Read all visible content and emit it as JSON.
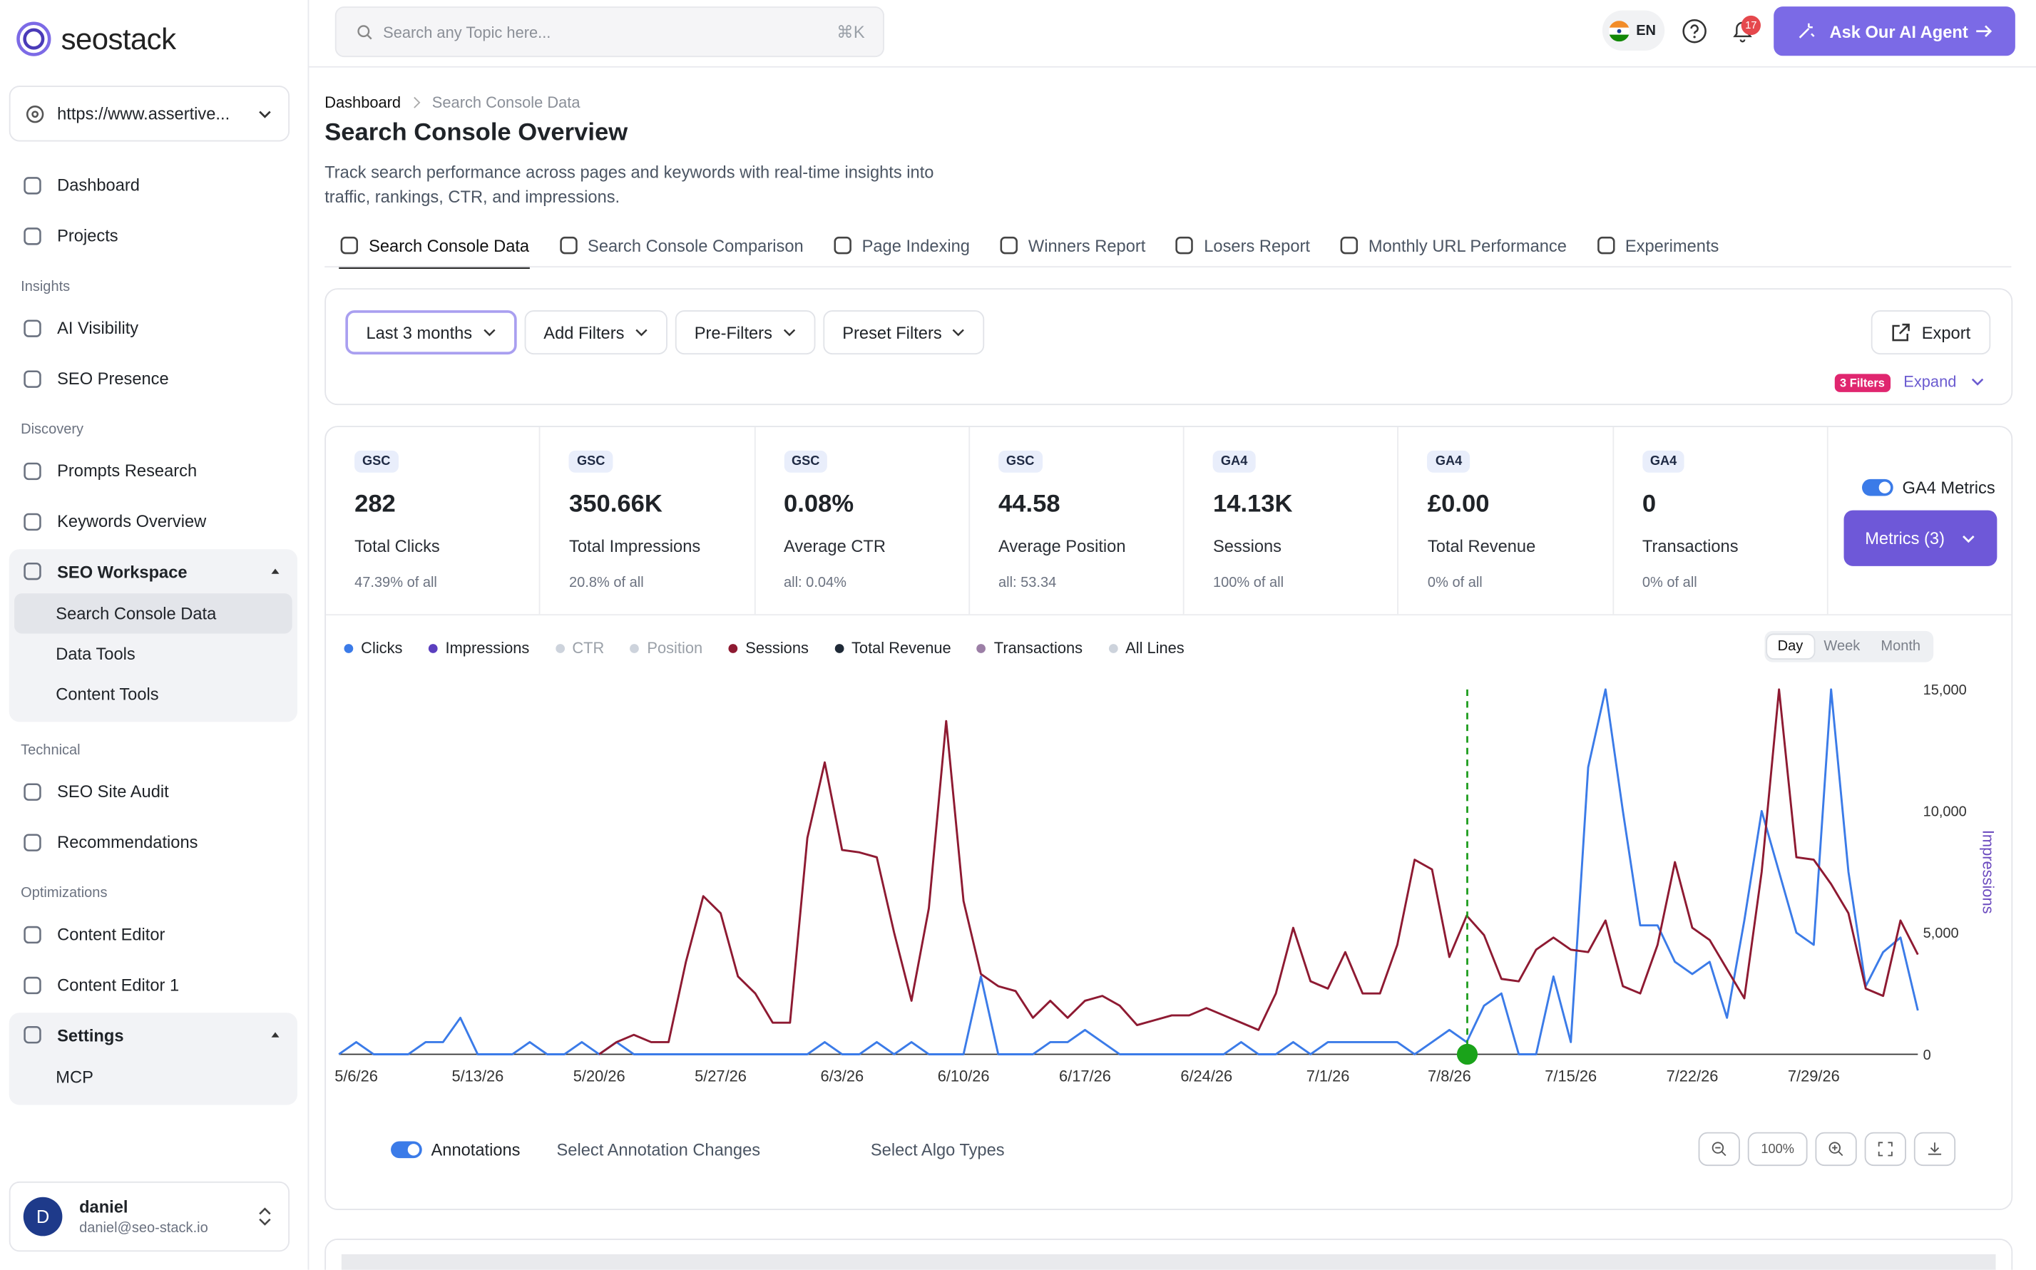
{
  "sidebar": {
    "brand": "seostack",
    "site": "https://www.assertive...",
    "nav": [
      {
        "items": [
          {
            "label": "Dashboard"
          },
          {
            "label": "Projects"
          }
        ]
      },
      {
        "heading": "Insights",
        "items": [
          {
            "label": "AI Visibility"
          },
          {
            "label": "SEO Presence"
          }
        ]
      },
      {
        "heading": "Discovery",
        "items": [
          {
            "label": "Prompts Research"
          },
          {
            "label": "Keywords Overview"
          },
          {
            "label": "SEO Workspace",
            "children": [
              "Search Console Data",
              "Data Tools",
              "Content Tools"
            ]
          }
        ]
      },
      {
        "heading": "Technical",
        "items": [
          {
            "label": "SEO Site Audit"
          },
          {
            "label": "Recommendations"
          }
        ]
      },
      {
        "heading": "Optimizations",
        "items": [
          {
            "label": "Content Editor"
          },
          {
            "label": "Content Editor 1"
          },
          {
            "label": "Settings",
            "children": [
              "MCP"
            ]
          }
        ]
      }
    ],
    "user": {
      "initial": "D",
      "name": "daniel",
      "email": "daniel@seo-stack.io"
    }
  },
  "topbar": {
    "search_placeholder": "Search any Topic here...",
    "shortcut": "⌘K",
    "language": "EN",
    "notifications": "17",
    "cta": "Ask Our AI Agent"
  },
  "breadcrumb": [
    "Dashboard",
    "Search Console Data"
  ],
  "title": "Search Console Overview",
  "description": "Track search performance across pages and keywords with real-time insights into traffic, rankings, CTR, and impressions.",
  "tabs": [
    "Search Console Data",
    "Search Console Comparison",
    "Page Indexing",
    "Winners Report",
    "Losers Report",
    "Monthly URL Performance",
    "Experiments"
  ],
  "filters": {
    "buttons": [
      "Last 3 months",
      "Add Filters",
      "Pre-Filters",
      "Preset Filters"
    ],
    "export": "Export",
    "badge": "3 Filters",
    "expand": "Expand"
  },
  "metrics": [
    {
      "source": "GSC",
      "value": "282",
      "label": "Total Clicks",
      "note": "47.39% of all"
    },
    {
      "source": "GSC",
      "value": "350.66K",
      "label": "Total Impressions",
      "note": "20.8% of all"
    },
    {
      "source": "GSC",
      "value": "0.08%",
      "label": "Average CTR",
      "note": "all: 0.04%"
    },
    {
      "source": "GSC",
      "value": "44.58",
      "label": "Average Position",
      "note": "all: 53.34"
    },
    {
      "source": "GA4",
      "value": "14.13K",
      "label": "Sessions",
      "note": "100% of all"
    },
    {
      "source": "GA4",
      "value": "£0.00",
      "label": "Total Revenue",
      "note": "0% of all"
    },
    {
      "source": "GA4",
      "value": "0",
      "label": "Transactions",
      "note": "0% of all"
    }
  ],
  "ga4_toggle": "GA4 Metrics",
  "metrics_button": "Metrics (3)",
  "granularity": [
    "Day",
    "Week",
    "Month"
  ],
  "chart_data": {
    "type": "line",
    "y_axis_position": "right",
    "ylabel": "Impressions",
    "ylim": [
      0,
      15000
    ],
    "yticks": [
      0,
      {
        "value": 5000,
        "label": "5,000"
      },
      {
        "value": 10000,
        "label": "10,000"
      },
      {
        "value": 15000,
        "label": "15,000"
      }
    ],
    "categories": [
      null,
      "5/6/26",
      null,
      null,
      null,
      null,
      null,
      null,
      "5/13/26",
      null,
      null,
      null,
      null,
      null,
      null,
      "5/20/26",
      null,
      null,
      null,
      null,
      null,
      null,
      "5/27/26",
      null,
      null,
      null,
      null,
      null,
      null,
      "6/3/26",
      null,
      null,
      null,
      null,
      null,
      null,
      "6/10/26",
      null,
      null,
      null,
      null,
      null,
      null,
      "6/17/26",
      null,
      null,
      null,
      null,
      null,
      null,
      "6/24/26",
      null,
      null,
      null,
      null,
      null,
      null,
      "7/1/26",
      null,
      null,
      null,
      null,
      null,
      null,
      "7/8/26",
      null,
      null,
      null,
      null,
      null,
      null,
      "7/15/26",
      null,
      null,
      null,
      null,
      null,
      null,
      "7/22/26",
      null,
      null,
      null,
      null,
      null,
      null,
      "7/29/26",
      null,
      null,
      null,
      null,
      null,
      null
    ],
    "series": [
      {
        "name": "Clicks",
        "color": "#3b7be8",
        "values": [
          0,
          500,
          0,
          0,
          0,
          500,
          500,
          1500,
          0,
          0,
          0,
          500,
          0,
          0,
          500,
          0,
          500,
          0,
          0,
          0,
          0,
          0,
          0,
          0,
          0,
          0,
          0,
          0,
          500,
          0,
          0,
          500,
          0,
          500,
          0,
          0,
          0,
          3200,
          0,
          0,
          0,
          500,
          500,
          1000,
          500,
          0,
          0,
          0,
          0,
          0,
          0,
          0,
          500,
          0,
          0,
          500,
          0,
          500,
          500,
          500,
          500,
          500,
          0,
          500,
          1000,
          500,
          2000,
          2500,
          0,
          0,
          3200,
          500,
          11800,
          15000,
          10000,
          5300,
          5300,
          3800,
          3300,
          3800,
          1500,
          5500,
          10000,
          7500,
          5000,
          4500,
          15000,
          7500,
          2800,
          4200,
          4800,
          1800
        ]
      },
      {
        "name": "Impressions",
        "color": "#5b3fbf"
      },
      {
        "name": "CTR",
        "color": "#cdd3dc",
        "active": false
      },
      {
        "name": "Position",
        "color": "#cdd3dc",
        "active": false
      },
      {
        "name": "Sessions",
        "color": "#8e1a32",
        "values": [
          null,
          null,
          null,
          null,
          null,
          null,
          null,
          null,
          null,
          null,
          null,
          null,
          null,
          null,
          null,
          0,
          500,
          800,
          500,
          500,
          3800,
          6500,
          5800,
          3200,
          2500,
          1300,
          1300,
          8900,
          12000,
          8400,
          8300,
          8100,
          5000,
          2200,
          6000,
          13700,
          6300,
          3300,
          2800,
          2600,
          1500,
          2200,
          1500,
          2200,
          2400,
          2000,
          1200,
          1400,
          1600,
          1600,
          1900,
          1600,
          1300,
          1000,
          2500,
          5200,
          3000,
          2700,
          4200,
          2500,
          2500,
          4500,
          8000,
          7600,
          4000,
          5700,
          4900,
          3100,
          3000,
          4300,
          4800,
          4300,
          4200,
          5500,
          2800,
          2500,
          4500,
          7900,
          5200,
          4700,
          3500,
          2300,
          7500,
          15000,
          8100,
          8000,
          7000,
          5800,
          2700,
          2400,
          5500,
          4100
        ]
      },
      {
        "name": "Total Revenue",
        "color": "#1f2a37"
      },
      {
        "name": "Transactions",
        "color": "#9c7fa6"
      },
      {
        "name": "All Lines",
        "color": "#cdd3dc"
      }
    ]
  },
  "annotations": {
    "toggle": "Annotations",
    "changes": "Select Annotation Changes",
    "algo": "Select Algo Types",
    "zoom": "100%"
  }
}
